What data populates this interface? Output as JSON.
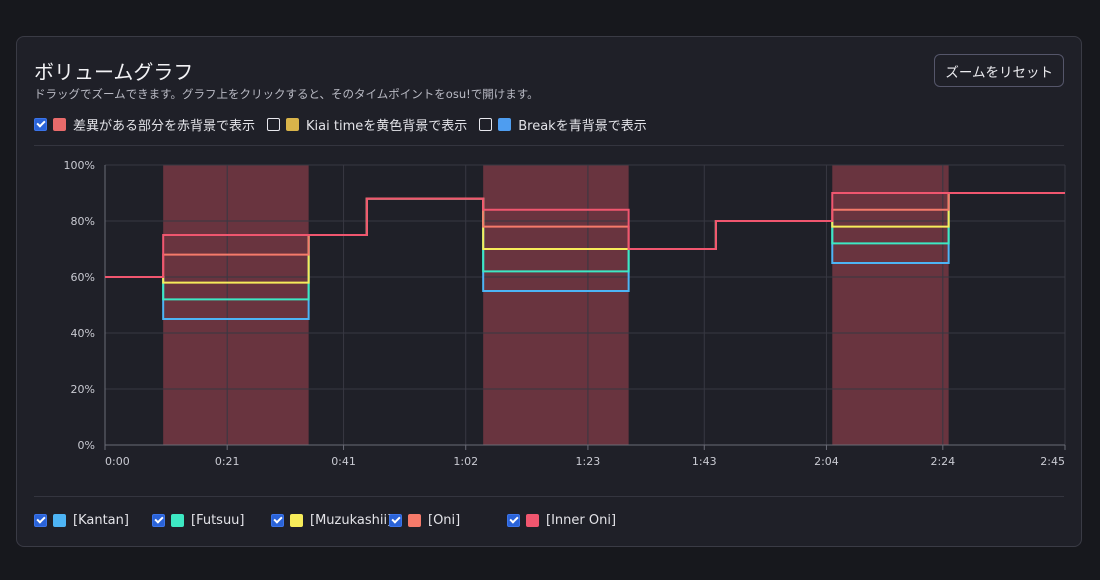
{
  "header": {
    "title": "ボリュームグラフ",
    "subtitle": "ドラッグでズームできます。グラフ上をクリックすると、そのタイムポイントをosu!で開けます。",
    "reset_label": "ズームをリセット"
  },
  "options": [
    {
      "label": "差異がある部分を赤背景で表示",
      "checked": true,
      "color": "#e96b6b"
    },
    {
      "label": "Kiai timeを黄色背景で表示",
      "checked": false,
      "color": "#d9b44a"
    },
    {
      "label": "Breakを青背景で表示",
      "checked": false,
      "color": "#4e9df0"
    }
  ],
  "legend": [
    {
      "label": "[Kantan]",
      "checked": true,
      "color": "#4db4f5"
    },
    {
      "label": "[Futsuu]",
      "checked": true,
      "color": "#3de8c3"
    },
    {
      "label": "[Muzukashii]",
      "checked": true,
      "color": "#f7ec5a"
    },
    {
      "label": "[Oni]",
      "checked": true,
      "color": "#f57a6a"
    },
    {
      "label": "[Inner Oni]",
      "checked": true,
      "color": "#f0566f"
    }
  ],
  "chart_data": {
    "type": "line",
    "step": true,
    "xlim": [
      0,
      165
    ],
    "ylim": [
      0,
      100
    ],
    "x_ticks": [
      {
        "v": 0,
        "label": "0:00"
      },
      {
        "v": 21,
        "label": "0:21"
      },
      {
        "v": 41,
        "label": "0:41"
      },
      {
        "v": 62,
        "label": "1:02"
      },
      {
        "v": 83,
        "label": "1:23"
      },
      {
        "v": 103,
        "label": "1:43"
      },
      {
        "v": 124,
        "label": "2:04"
      },
      {
        "v": 144,
        "label": "2:24"
      },
      {
        "v": 165,
        "label": "2:45"
      }
    ],
    "y_ticks": [
      {
        "v": 0,
        "label": "0%"
      },
      {
        "v": 20,
        "label": "20%"
      },
      {
        "v": 40,
        "label": "40%"
      },
      {
        "v": 60,
        "label": "60%"
      },
      {
        "v": 80,
        "label": "80%"
      },
      {
        "v": 100,
        "label": "100%"
      }
    ],
    "grid": true,
    "diff_regions": [
      [
        10,
        35
      ],
      [
        65,
        90
      ],
      [
        125,
        145
      ]
    ],
    "series": [
      {
        "name": "[Kantan]",
        "color": "#4db4f5",
        "x": [
          0,
          10,
          35,
          45,
          65,
          90,
          105,
          125,
          145,
          165
        ],
        "y": [
          60,
          45,
          75,
          88,
          55,
          70,
          80,
          65,
          90,
          90
        ]
      },
      {
        "name": "[Futsuu]",
        "color": "#3de8c3",
        "x": [
          0,
          10,
          35,
          45,
          65,
          90,
          105,
          125,
          145,
          165
        ],
        "y": [
          60,
          52,
          75,
          88,
          62,
          70,
          80,
          72,
          90,
          90
        ]
      },
      {
        "name": "[Muzukashii]",
        "color": "#f7ec5a",
        "x": [
          0,
          10,
          35,
          45,
          65,
          90,
          105,
          125,
          145,
          165
        ],
        "y": [
          60,
          58,
          75,
          88,
          70,
          70,
          80,
          78,
          90,
          90
        ]
      },
      {
        "name": "[Oni]",
        "color": "#f57a6a",
        "x": [
          0,
          10,
          35,
          45,
          65,
          90,
          105,
          125,
          145,
          165
        ],
        "y": [
          60,
          68,
          75,
          88,
          78,
          70,
          80,
          84,
          90,
          90
        ]
      },
      {
        "name": "[Inner Oni]",
        "color": "#f0566f",
        "x": [
          0,
          10,
          35,
          45,
          65,
          90,
          105,
          125,
          145,
          165
        ],
        "y": [
          60,
          75,
          75,
          88,
          84,
          70,
          80,
          90,
          90,
          90
        ]
      }
    ]
  }
}
